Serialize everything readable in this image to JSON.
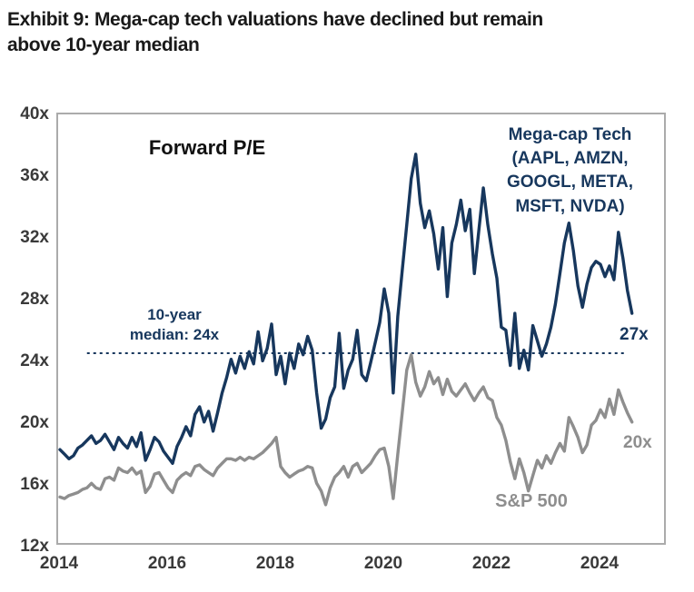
{
  "title": "Exhibit 9: Mega-cap tech valuations have declined but remain\nabove 10-year median",
  "legend_text": "Mega-cap Tech\n(AAPL, AMZN,\nGOOGL, META,\nMSFT, NVDA)",
  "sp500_label": "S&P 500",
  "colors": {
    "mega_cap_tech": "#17375d",
    "sp500": "#8e8e8e",
    "axis_text": "#3a3a3a",
    "plot_border": "#ababab"
  },
  "chart_data": {
    "type": "line",
    "title": "Forward P/E",
    "x_start": 2014.0,
    "x_step_years": 0.083333,
    "xlim": [
      2014,
      2025.25
    ],
    "ylim": [
      12,
      40
    ],
    "grid": false,
    "x_tick_values": [
      2014,
      2016,
      2018,
      2020,
      2022,
      2024
    ],
    "x_tick_labels": [
      "2014",
      "2016",
      "2018",
      "2020",
      "2022",
      "2024"
    ],
    "y_tick_values": [
      40,
      36,
      32,
      28,
      24,
      20,
      16,
      12
    ],
    "y_tick_labels": [
      "40x",
      "36x",
      "32x",
      "28x",
      "24x",
      "20x",
      "16x",
      "12x"
    ],
    "median_line": {
      "value": 24.4,
      "label": "10-year\nmedian: 24x",
      "x_span": [
        2014.5,
        2024.5
      ],
      "style": "dashed",
      "color": "#17375d"
    },
    "series": [
      {
        "name": "Mega-cap Tech (AAPL, AMZN, GOOGL, META, MSFT, NVDA)",
        "color": "#17375d",
        "end_label": "27x",
        "values": [
          18.1,
          17.8,
          17.5,
          17.7,
          18.2,
          18.4,
          18.7,
          19.0,
          18.5,
          18.7,
          19.1,
          18.6,
          18.1,
          18.9,
          18.5,
          18.2,
          18.9,
          18.3,
          19.2,
          17.4,
          18.1,
          18.9,
          18.6,
          18.0,
          17.6,
          17.2,
          18.3,
          18.9,
          19.6,
          19.0,
          20.4,
          20.9,
          19.9,
          20.6,
          19.3,
          20.5,
          21.8,
          22.8,
          24.0,
          23.1,
          24.2,
          23.4,
          24.5,
          23.7,
          25.8,
          23.9,
          24.7,
          26.3,
          23.0,
          24.2,
          22.4,
          24.4,
          23.4,
          25.0,
          24.3,
          25.5,
          24.6,
          21.8,
          19.5,
          20.1,
          21.5,
          22.2,
          25.7,
          22.1,
          23.3,
          24.0,
          25.9,
          23.0,
          22.6,
          23.8,
          25.1,
          26.4,
          28.6,
          27.0,
          21.8,
          26.8,
          29.8,
          32.8,
          35.8,
          37.4,
          34.2,
          32.6,
          33.7,
          32.2,
          29.9,
          32.6,
          28.1,
          31.6,
          32.8,
          34.4,
          32.4,
          33.8,
          29.6,
          32.4,
          35.2,
          32.8,
          30.9,
          29.3,
          26.1,
          25.9,
          23.6,
          27.0,
          23.4,
          24.6,
          23.3,
          26.2,
          25.2,
          24.2,
          25.0,
          26.1,
          27.6,
          29.6,
          31.6,
          32.9,
          31.1,
          28.8,
          27.4,
          28.9,
          30.0,
          30.4,
          30.2,
          29.4,
          30.1,
          29.2,
          32.3,
          30.6,
          28.5,
          27.0
        ]
      },
      {
        "name": "S&P 500",
        "color": "#8e8e8e",
        "end_label": "20x",
        "values": [
          15.0,
          14.9,
          15.1,
          15.2,
          15.3,
          15.5,
          15.6,
          15.9,
          15.6,
          15.5,
          16.2,
          16.3,
          16.1,
          16.9,
          16.7,
          16.6,
          16.9,
          16.5,
          16.7,
          15.3,
          15.7,
          16.5,
          16.6,
          16.1,
          15.6,
          15.3,
          16.1,
          16.4,
          16.6,
          16.4,
          17.0,
          17.1,
          16.8,
          16.6,
          16.4,
          16.9,
          17.2,
          17.5,
          17.5,
          17.4,
          17.6,
          17.4,
          17.6,
          17.5,
          17.7,
          17.9,
          18.2,
          18.5,
          18.9,
          17.0,
          16.6,
          16.3,
          16.5,
          16.7,
          16.8,
          17.0,
          16.9,
          15.9,
          15.4,
          14.5,
          15.6,
          16.3,
          16.6,
          17.0,
          16.3,
          17.0,
          17.2,
          16.6,
          16.9,
          17.2,
          17.7,
          18.1,
          18.2,
          17.0,
          14.9,
          17.8,
          20.5,
          23.3,
          24.3,
          22.5,
          21.6,
          22.2,
          23.2,
          22.4,
          22.8,
          21.7,
          22.7,
          21.9,
          21.6,
          22.0,
          22.4,
          21.8,
          21.3,
          21.8,
          22.2,
          21.5,
          21.3,
          20.2,
          19.7,
          18.7,
          17.3,
          16.2,
          17.5,
          16.6,
          15.4,
          16.4,
          17.4,
          16.9,
          17.7,
          17.2,
          17.9,
          18.5,
          18.0,
          20.2,
          19.6,
          18.9,
          17.9,
          18.4,
          19.7,
          20.0,
          20.7,
          20.2,
          21.4,
          20.4,
          22.0,
          21.2,
          20.5,
          19.9
        ]
      }
    ]
  }
}
